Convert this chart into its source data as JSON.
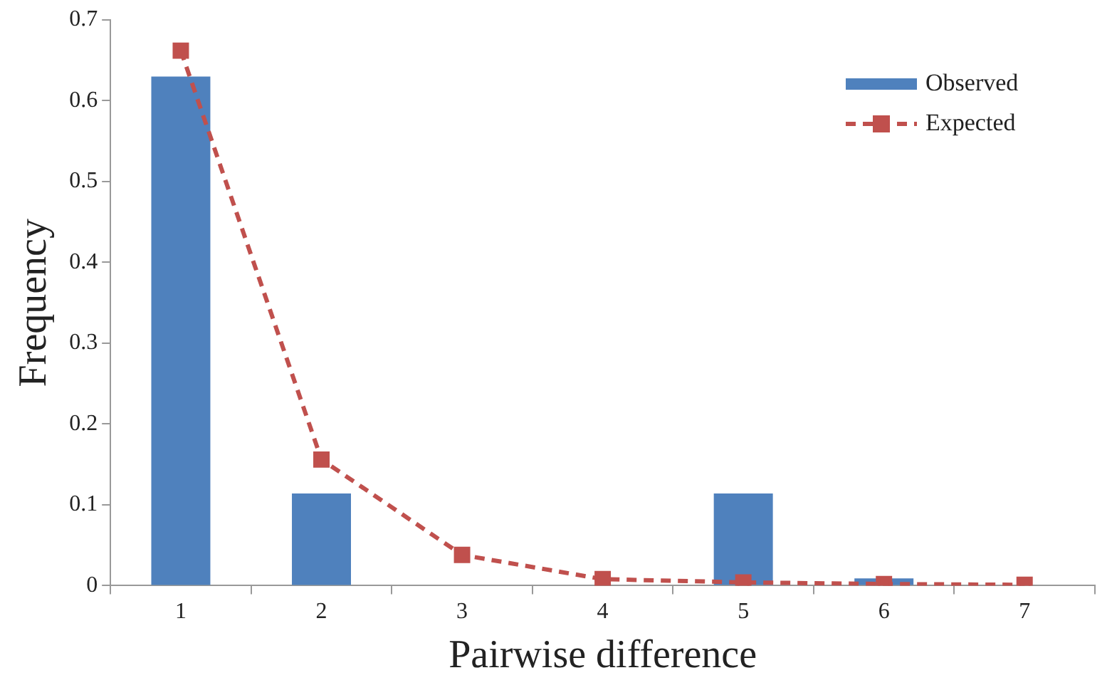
{
  "chart_data": {
    "type": "bar",
    "xlabel": "Pairwise difference",
    "ylabel": "Frequency",
    "categories": [
      "1",
      "2",
      "3",
      "4",
      "5",
      "6",
      "7"
    ],
    "series": [
      {
        "name": "Observed",
        "color": "#4f81bd",
        "values": [
          0.63,
          0.114,
          0,
          0,
          0.114,
          0.009,
          0
        ]
      },
      {
        "name": "Expected",
        "type": "line",
        "color": "#c0504d",
        "marker": "square",
        "line_style": "dashed",
        "values": [
          0.662,
          0.156,
          0.038,
          0.008,
          0.004,
          0.002,
          0.001
        ]
      }
    ],
    "ylim": [
      0,
      0.7
    ],
    "yticks": [
      0,
      0.1,
      0.2,
      0.3,
      0.4,
      0.5,
      0.6,
      0.7
    ],
    "grid": false,
    "legend": "top right"
  }
}
